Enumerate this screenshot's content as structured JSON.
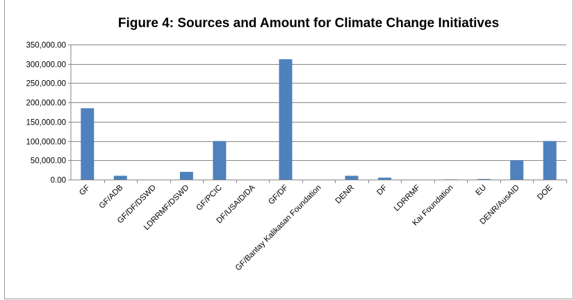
{
  "chart_data": {
    "type": "bar",
    "title": "Figure 4: Sources and Amount for Climate Change Initiatives",
    "xlabel": "",
    "ylabel": "",
    "ylim": [
      0,
      350000
    ],
    "y_ticks": [
      "0.00",
      "50,000.00",
      "100,000.00",
      "150,000.00",
      "200,000.00",
      "250,000.00",
      "300,000.00",
      "350,000.00"
    ],
    "grid": true,
    "legend": "none",
    "bar_color": "#4f81bd",
    "categories": [
      "GF",
      "GF/ADB",
      "GF/DF/DSWD",
      "LDRRMF/DSWD",
      "GF/PCIC",
      "DF/USAID/DA",
      "GF/DF",
      "GF/Bantay Kalikasan Foundation",
      "DENR",
      "DF",
      "LDRRMF",
      "Kai Foundation",
      "EU",
      "DENR/AusAID",
      "DOE"
    ],
    "values": [
      185000,
      10000,
      0,
      20000,
      100000,
      0,
      312000,
      0,
      10000,
      5000,
      0,
      500,
      1500,
      50000,
      100000
    ]
  }
}
